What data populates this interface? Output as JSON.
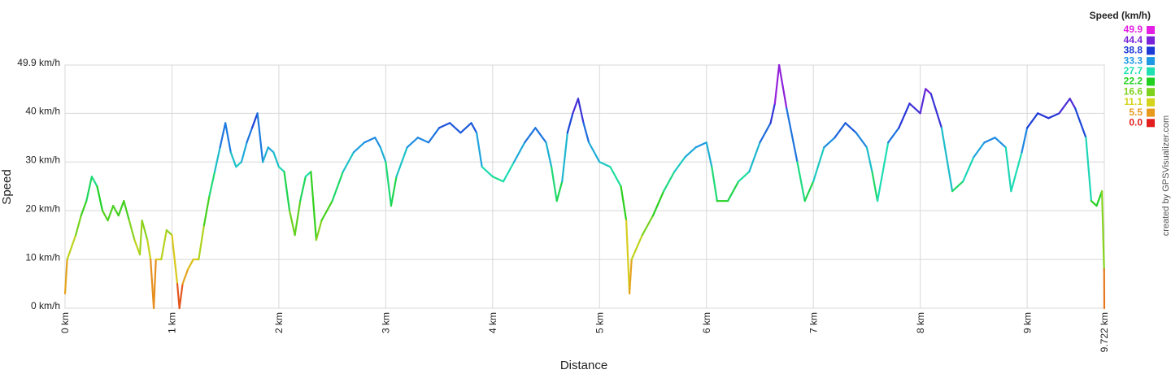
{
  "chart_data": {
    "type": "line",
    "x_label": "Distance",
    "y_label": "Speed",
    "credit": "created by GPSVisualizer.com",
    "grid": true,
    "xlim": [
      0,
      9.722
    ],
    "ylim": [
      0,
      49.9
    ],
    "xticks": [
      {
        "value": 0,
        "label": "0 km"
      },
      {
        "value": 1,
        "label": "1 km"
      },
      {
        "value": 2,
        "label": "2 km"
      },
      {
        "value": 3,
        "label": "3 km"
      },
      {
        "value": 4,
        "label": "4 km"
      },
      {
        "value": 5,
        "label": "5 km"
      },
      {
        "value": 6,
        "label": "6 km"
      },
      {
        "value": 7,
        "label": "7 km"
      },
      {
        "value": 8,
        "label": "8 km"
      },
      {
        "value": 9,
        "label": "9 km"
      },
      {
        "value": 9.722,
        "label": "9.722 km"
      }
    ],
    "yticks": [
      {
        "value": 0,
        "label": "0 km/h"
      },
      {
        "value": 10,
        "label": "10 km/h"
      },
      {
        "value": 20,
        "label": "20 km/h"
      },
      {
        "value": 30,
        "label": "30 km/h"
      },
      {
        "value": 40,
        "label": "40 km/h"
      },
      {
        "value": 49.9,
        "label": "49.9 km/h"
      }
    ],
    "color_scale": {
      "title": "Speed (km/h)",
      "stops": [
        {
          "value": 49.9,
          "label": "49.9",
          "color": "#e21fe2"
        },
        {
          "value": 44.4,
          "label": "44.4",
          "color": "#7a22d8"
        },
        {
          "value": 38.8,
          "label": "38.8",
          "color": "#1c3ad6"
        },
        {
          "value": 33.3,
          "label": "33.3",
          "color": "#1e9ae4"
        },
        {
          "value": 27.7,
          "label": "27.7",
          "color": "#1ee0b0"
        },
        {
          "value": 22.2,
          "label": "22.2",
          "color": "#20d020"
        },
        {
          "value": 16.6,
          "label": "16.6",
          "color": "#7ed21e"
        },
        {
          "value": 11.1,
          "label": "11.1",
          "color": "#d4d41e"
        },
        {
          "value": 5.5,
          "label": "5.5",
          "color": "#e69a1e"
        },
        {
          "value": 0,
          "label": "0.0",
          "color": "#e21e1e"
        }
      ]
    },
    "x": [
      0,
      0.02,
      0.1,
      0.15,
      0.2,
      0.25,
      0.3,
      0.35,
      0.4,
      0.45,
      0.5,
      0.55,
      0.6,
      0.65,
      0.7,
      0.72,
      0.77,
      0.8,
      0.83,
      0.85,
      0.9,
      0.95,
      1.0,
      1.05,
      1.07,
      1.1,
      1.15,
      1.2,
      1.25,
      1.3,
      1.35,
      1.4,
      1.45,
      1.5,
      1.55,
      1.6,
      1.65,
      1.7,
      1.75,
      1.8,
      1.85,
      1.9,
      1.95,
      2.0,
      2.05,
      2.1,
      2.15,
      2.2,
      2.25,
      2.3,
      2.35,
      2.4,
      2.5,
      2.6,
      2.7,
      2.8,
      2.9,
      2.95,
      3.0,
      3.05,
      3.1,
      3.2,
      3.3,
      3.4,
      3.5,
      3.6,
      3.7,
      3.8,
      3.85,
      3.9,
      4.0,
      4.1,
      4.2,
      4.3,
      4.4,
      4.5,
      4.55,
      4.6,
      4.65,
      4.7,
      4.75,
      4.8,
      4.85,
      4.9,
      5.0,
      5.1,
      5.2,
      5.25,
      5.28,
      5.3,
      5.4,
      5.5,
      5.6,
      5.7,
      5.8,
      5.9,
      6.0,
      6.05,
      6.1,
      6.2,
      6.3,
      6.4,
      6.5,
      6.6,
      6.64,
      6.68,
      6.75,
      6.85,
      6.92,
      7.0,
      7.1,
      7.2,
      7.3,
      7.4,
      7.5,
      7.55,
      7.6,
      7.7,
      7.8,
      7.9,
      8.0,
      8.05,
      8.1,
      8.2,
      8.3,
      8.4,
      8.5,
      8.6,
      8.7,
      8.8,
      8.85,
      8.95,
      9.0,
      9.1,
      9.2,
      9.3,
      9.4,
      9.45,
      9.55,
      9.6,
      9.65,
      9.7,
      9.72,
      9.722
    ],
    "values": [
      3,
      10,
      15,
      19,
      22,
      27,
      25,
      20,
      18,
      21,
      19,
      22,
      18,
      14,
      11,
      18,
      14,
      10,
      0,
      10,
      10,
      16,
      15,
      5,
      0,
      5,
      8,
      10,
      10,
      17,
      23,
      28,
      33,
      38,
      32,
      29,
      30,
      34,
      37,
      40,
      30,
      33,
      32,
      29,
      28,
      20,
      15,
      22,
      27,
      28,
      14,
      18,
      22,
      28,
      32,
      34,
      35,
      33,
      30,
      21,
      27,
      33,
      35,
      34,
      37,
      38,
      36,
      38,
      36,
      29,
      27,
      26,
      30,
      34,
      37,
      34,
      29,
      22,
      26,
      36,
      40,
      43,
      38,
      34,
      30,
      29,
      25,
      18,
      3,
      10,
      15,
      19,
      24,
      28,
      31,
      33,
      34,
      29,
      22,
      22,
      26,
      28,
      34,
      38,
      42,
      49.9,
      41,
      30,
      22,
      26,
      33,
      35,
      38,
      36,
      33,
      28,
      22,
      34,
      37,
      42,
      40,
      45,
      44,
      37,
      24,
      26,
      31,
      34,
      35,
      33,
      24,
      32,
      37,
      40,
      39,
      40,
      43,
      41,
      35,
      22,
      21,
      24,
      8,
      0
    ]
  }
}
